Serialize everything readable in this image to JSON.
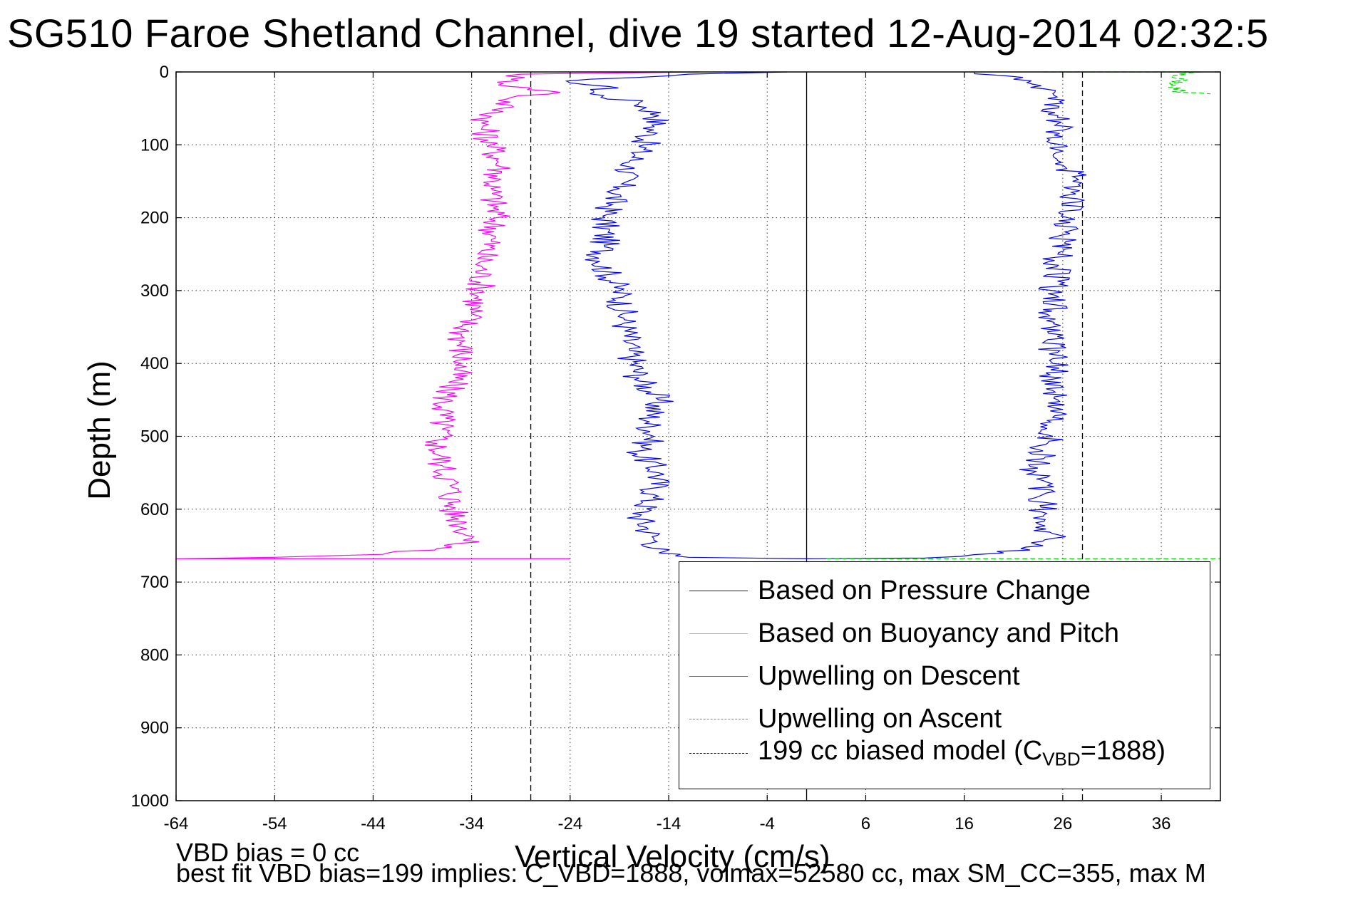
{
  "title": "SG510 Faroe Shetland Channel, dive 19 started 12-Aug-2014 02:32:5",
  "footnote": {
    "line1": "VBD bias = 0 cc",
    "line2": "best fit VBD bias=199 implies: C_VBD=1888, volmax=52580 cc, max SM_CC=355, max M"
  },
  "legend": {
    "items": [
      {
        "label": "Based on Pressure Change",
        "color": "#0000ff",
        "style": "solid"
      },
      {
        "label": "Based on Buoyancy and Pitch",
        "color": "#00ffff",
        "style": "solid"
      },
      {
        "label": "Upwelling on Descent",
        "color": "#ff00ff",
        "style": "solid"
      },
      {
        "label": "Upwelling on Ascent",
        "color": "#00e000",
        "style": "dashed"
      }
    ],
    "model_label_main": "199 cc biased model (C",
    "model_label_sub": "VBD",
    "model_label_end": "=1888)",
    "model_color": "#000000",
    "model_style": "dashed"
  },
  "chart_data": {
    "type": "line",
    "title": "SG510 Faroe Shetland Channel, dive 19 started 12-Aug-2014 02:32:5",
    "xlabel": "Vertical Velocity (cm/s)",
    "ylabel": "Depth (m)",
    "xlim": [
      -64,
      42
    ],
    "ylim": [
      1000,
      0
    ],
    "y_reversed": true,
    "grid": true,
    "legend_position": "bottom-right",
    "xticks": [
      -64,
      -54,
      -44,
      -34,
      -24,
      -14,
      -4,
      6,
      16,
      26,
      36
    ],
    "yticks": [
      0,
      100,
      200,
      300,
      400,
      500,
      600,
      700,
      800,
      900,
      1000
    ],
    "reference_lines": [
      {
        "kind": "vertical",
        "x": 0,
        "style": "solid",
        "color": "#000000"
      },
      {
        "kind": "vertical",
        "x": -28,
        "style": "dashed",
        "color": "#000000"
      },
      {
        "kind": "vertical",
        "x": 28,
        "style": "dashed",
        "color": "#000000"
      }
    ],
    "series": [
      {
        "name": "Based on Pressure Change",
        "color": "#0000ff",
        "style": "solid",
        "points": [
          [
            -2,
            0
          ],
          [
            -12,
            3
          ],
          [
            -22,
            10
          ],
          [
            -24,
            15
          ],
          [
            -20,
            20
          ],
          [
            -22,
            30
          ],
          [
            -17,
            42
          ],
          [
            -15,
            60
          ],
          [
            -15.5,
            75
          ],
          [
            -16.5,
            100
          ],
          [
            -18,
            130
          ],
          [
            -19,
            160
          ],
          [
            -20.5,
            200
          ],
          [
            -20.5,
            240
          ],
          [
            -21,
            260
          ],
          [
            -19,
            300
          ],
          [
            -18.5,
            340
          ],
          [
            -18,
            380
          ],
          [
            -17,
            420
          ],
          [
            -15,
            450
          ],
          [
            -16,
            480
          ],
          [
            -15.5,
            500
          ],
          [
            -17,
            520
          ],
          [
            -15,
            550
          ],
          [
            -15.5,
            580
          ],
          [
            -17,
            610
          ],
          [
            -15.5,
            640
          ],
          [
            -15,
            660
          ],
          [
            -12,
            666
          ],
          [
            0,
            668
          ],
          [
            12,
            667
          ],
          [
            20,
            660
          ],
          [
            24,
            650
          ],
          [
            25,
            640
          ],
          [
            24,
            610
          ],
          [
            24,
            580
          ],
          [
            23,
            550
          ],
          [
            24,
            520
          ],
          [
            25,
            500
          ],
          [
            25.5,
            450
          ],
          [
            25,
            400
          ],
          [
            25,
            350
          ],
          [
            25,
            300
          ],
          [
            25.5,
            250
          ],
          [
            26.5,
            200
          ],
          [
            27,
            150
          ],
          [
            26,
            100
          ],
          [
            25.5,
            60
          ],
          [
            25,
            30
          ],
          [
            21,
            10
          ],
          [
            20,
            5
          ],
          [
            17,
            0
          ]
        ]
      },
      {
        "name": "Upwelling on Descent",
        "color": "#ff00ff",
        "style": "solid",
        "points": [
          [
            -11,
            0
          ],
          [
            -29,
            3
          ],
          [
            -30,
            10
          ],
          [
            -30,
            20
          ],
          [
            -25,
            28
          ],
          [
            -30,
            35
          ],
          [
            -31,
            50
          ],
          [
            -33,
            70
          ],
          [
            -32,
            100
          ],
          [
            -31,
            130
          ],
          [
            -32,
            160
          ],
          [
            -31.5,
            200
          ],
          [
            -32,
            230
          ],
          [
            -33,
            260
          ],
          [
            -33,
            300
          ],
          [
            -34,
            330
          ],
          [
            -35,
            360
          ],
          [
            -35,
            400
          ],
          [
            -36,
            430
          ],
          [
            -37,
            460
          ],
          [
            -37,
            490
          ],
          [
            -37.5,
            510
          ],
          [
            -37,
            540
          ],
          [
            -36,
            570
          ],
          [
            -36,
            600
          ],
          [
            -35,
            620
          ],
          [
            -34,
            640
          ],
          [
            -36,
            652
          ],
          [
            -43,
            662
          ],
          [
            -54,
            666
          ],
          [
            -64,
            668
          ],
          [
            -24,
            668
          ]
        ]
      },
      {
        "name": "Upwelling on Ascent",
        "color": "#00e000",
        "style": "dashed",
        "points": [
          [
            24,
            0
          ],
          [
            40,
            0
          ],
          [
            37,
            5
          ],
          [
            38,
            12
          ],
          [
            37,
            20
          ],
          [
            38,
            28
          ],
          [
            41,
            30
          ]
        ]
      },
      {
        "name": "Upwelling on Ascent",
        "color": "#00e000",
        "style": "dashed",
        "points": [
          [
            2,
            668
          ],
          [
            42,
            668
          ]
        ]
      }
    ]
  }
}
